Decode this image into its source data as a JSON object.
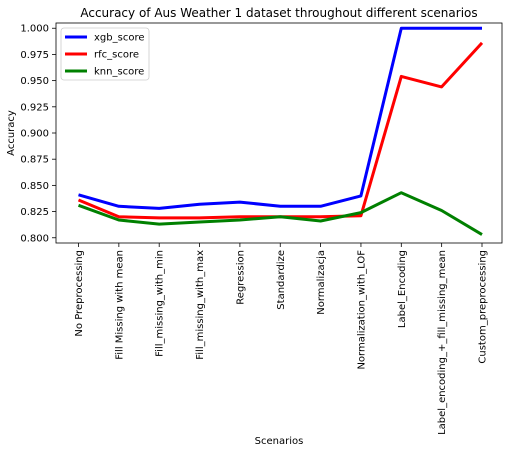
{
  "chart_data": {
    "type": "line",
    "title": "Accuracy of Aus Weather 1 dataset throughout different scenarios",
    "xlabel": "Scenarios",
    "ylabel": "Accuracy",
    "categories": [
      "No Preprocessing",
      "Fill Missing with mean",
      "Fill_missing_with_min",
      "Fill_missing_with_max",
      "Regression",
      "Standardize",
      "Normalizacja",
      "Normalization_with_LOF",
      "Label_Encoding",
      "Label_encoding_+_fill_missing_mean",
      "Custom_preprocessing"
    ],
    "ylim": [
      0.795,
      1.005
    ],
    "yticks": [
      "0.800",
      "0.825",
      "0.850",
      "0.875",
      "0.900",
      "0.925",
      "0.950",
      "0.975",
      "1.000"
    ],
    "grid": false,
    "legend_position": "top-left",
    "series": [
      {
        "name": "xgb_score",
        "color": "#0000ff",
        "values": [
          0.841,
          0.83,
          0.828,
          0.832,
          0.834,
          0.83,
          0.83,
          0.84,
          1.0,
          1.0,
          1.0
        ]
      },
      {
        "name": "rfc_score",
        "color": "#ff0000",
        "values": [
          0.836,
          0.82,
          0.819,
          0.819,
          0.82,
          0.82,
          0.82,
          0.821,
          0.954,
          0.944,
          0.986
        ]
      },
      {
        "name": "knn_score",
        "color": "#008000",
        "values": [
          0.831,
          0.817,
          0.813,
          0.815,
          0.817,
          0.82,
          0.816,
          0.824,
          0.843,
          0.826,
          0.803
        ]
      }
    ]
  }
}
